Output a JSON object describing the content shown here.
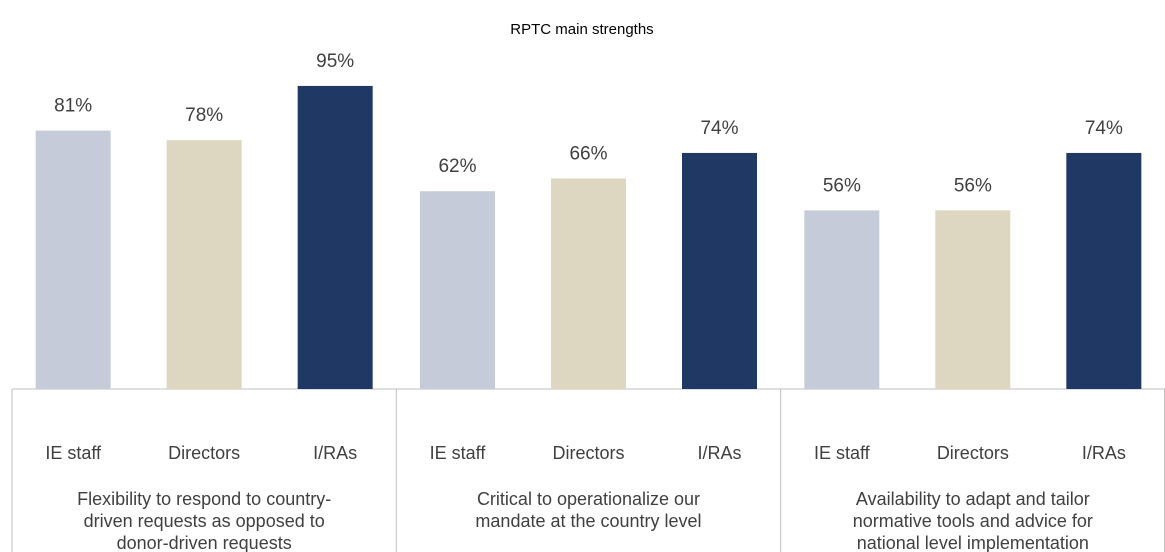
{
  "chart_data": {
    "type": "bar",
    "title": "RPTC main strengths",
    "categories": [
      [
        "Flexibility to respond to country-",
        "driven requests as opposed to",
        "donor-driven requests"
      ],
      [
        "Critical to operationalize our",
        "mandate at the country level"
      ],
      [
        "Availability to adapt and tailor",
        "normative tools and advice for",
        "national level implementation"
      ]
    ],
    "series": [
      {
        "name": "IE staff",
        "color": "#c5cbd8",
        "values": [
          81,
          62,
          56
        ],
        "value_labels": [
          "81%",
          "62%",
          "56%"
        ]
      },
      {
        "name": "Directors",
        "color": "#ddd6c0",
        "values": [
          78,
          66,
          56
        ],
        "value_labels": [
          "78%",
          "66%",
          "56%"
        ]
      },
      {
        "name": "I/RAs",
        "color": "#1f3864",
        "values": [
          95,
          74,
          74
        ],
        "value_labels": [
          "95%",
          "74%",
          "74%"
        ]
      }
    ],
    "ylim": [
      0,
      100
    ]
  }
}
